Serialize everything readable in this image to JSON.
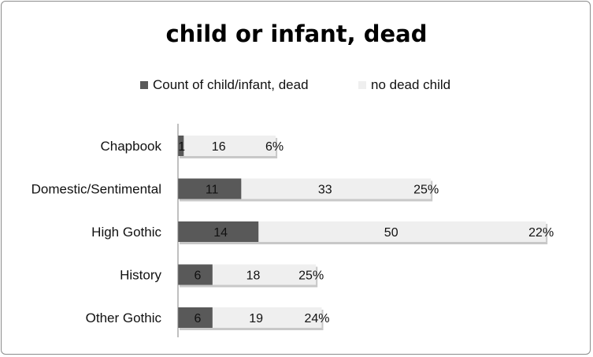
{
  "colors": {
    "dead": "#595959",
    "no_dead": "#efefef",
    "axis": "#808080"
  },
  "legend": {
    "dead_label": "Count of child/infant, dead",
    "no_dead_label": "no dead child"
  },
  "chart_data": {
    "type": "bar",
    "orientation": "horizontal",
    "stacked": true,
    "title": "child or infant, dead",
    "xlabel": "",
    "ylabel": "",
    "xlim": [
      0,
      64
    ],
    "grid": false,
    "legend_position": "top",
    "categories": [
      "Chapbook",
      "Domestic/Sentimental",
      "High Gothic",
      "History",
      "Other Gothic"
    ],
    "series": [
      {
        "name": "Count of child/infant, dead",
        "values": [
          1,
          11,
          14,
          6,
          6
        ]
      },
      {
        "name": "no dead child",
        "values": [
          16,
          33,
          50,
          18,
          19
        ]
      }
    ],
    "percent_labels": [
      "6%",
      "25%",
      "22%",
      "25%",
      "24%"
    ]
  }
}
